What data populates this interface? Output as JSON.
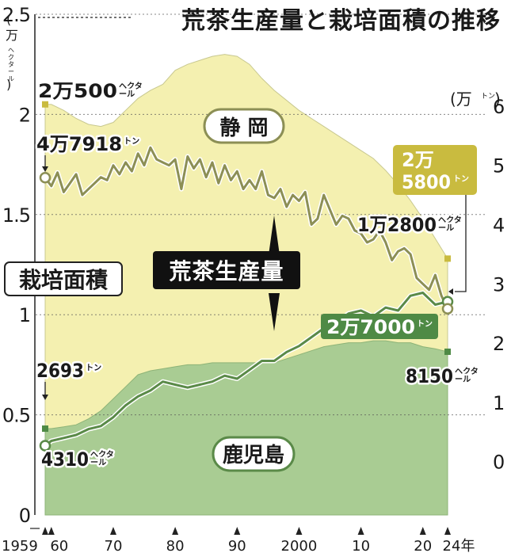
{
  "title": "荒茶生産量と栽培面積の推移",
  "colors": {
    "shizuoka_area_fill": "#f4f0b0",
    "shizuoka_area_edge": "#c8c890",
    "kagoshima_area_fill": "#a9cc93",
    "kagoshima_area_edge": "#8db377",
    "shizuoka_line": "#8c8f55",
    "kagoshima_line": "#5a8a48",
    "gold": "#c9bb3f",
    "marker_green": "#4e8a45",
    "text": "#1a1a1a"
  },
  "chart_data": {
    "type": "area+line",
    "title": "荒茶生産量と栽培面積の推移",
    "left_axis": {
      "label": "(万ヘクタール)",
      "unit_main": "万",
      "unit_sub": "ヘクタール",
      "ylim": [
        0,
        2.5
      ],
      "ticks": [
        "0",
        "0.5",
        "1",
        "1.5",
        "2",
        "2.5"
      ],
      "tick_values": [
        0,
        0.5,
        1,
        1.5,
        2,
        2.5
      ]
    },
    "right_axis": {
      "label": "(万トン)",
      "unit_main": "万",
      "unit_sub": "トン",
      "ylim": [
        -0.9,
        7.55
      ],
      "ticks": [
        "0",
        "1",
        "2",
        "3",
        "4",
        "5",
        "6"
      ],
      "tick_values": [
        0,
        1,
        2,
        3,
        4,
        5,
        6
      ]
    },
    "x_axis": {
      "range": [
        1959,
        2024
      ],
      "ticks": [
        {
          "year": 1959,
          "label": "1959"
        },
        {
          "year": 1960,
          "label": "60"
        },
        {
          "year": 1970,
          "label": "70"
        },
        {
          "year": 1980,
          "label": "80"
        },
        {
          "year": 1990,
          "label": "90"
        },
        {
          "year": 2000,
          "label": "2000"
        },
        {
          "year": 2010,
          "label": "10"
        },
        {
          "year": 2020,
          "label": "20"
        },
        {
          "year": 2024,
          "label": "24年"
        }
      ]
    },
    "series": [
      {
        "name": "静岡",
        "kind": "cultivation_area",
        "unit": "万ヘクタール",
        "points": [
          [
            1959,
            2.05
          ],
          [
            1960,
            2.05
          ],
          [
            1962,
            2.02
          ],
          [
            1964,
            1.98
          ],
          [
            1966,
            1.95
          ],
          [
            1968,
            1.94
          ],
          [
            1970,
            1.96
          ],
          [
            1972,
            2.02
          ],
          [
            1974,
            2.08
          ],
          [
            1976,
            2.12
          ],
          [
            1978,
            2.15
          ],
          [
            1980,
            2.22
          ],
          [
            1982,
            2.25
          ],
          [
            1984,
            2.27
          ],
          [
            1986,
            2.29
          ],
          [
            1988,
            2.3
          ],
          [
            1990,
            2.29
          ],
          [
            1992,
            2.25
          ],
          [
            1994,
            2.18
          ],
          [
            1996,
            2.12
          ],
          [
            1998,
            2.07
          ],
          [
            2000,
            2.02
          ],
          [
            2002,
            1.98
          ],
          [
            2004,
            1.94
          ],
          [
            2006,
            1.9
          ],
          [
            2008,
            1.86
          ],
          [
            2010,
            1.82
          ],
          [
            2012,
            1.78
          ],
          [
            2014,
            1.72
          ],
          [
            2016,
            1.65
          ],
          [
            2018,
            1.57
          ],
          [
            2020,
            1.48
          ],
          [
            2022,
            1.38
          ],
          [
            2024,
            1.28
          ]
        ]
      },
      {
        "name": "鹿児島",
        "kind": "cultivation_area",
        "unit": "万ヘクタール",
        "points": [
          [
            1959,
            0.431
          ],
          [
            1960,
            0.431
          ],
          [
            1962,
            0.44
          ],
          [
            1964,
            0.45
          ],
          [
            1966,
            0.48
          ],
          [
            1968,
            0.52
          ],
          [
            1970,
            0.58
          ],
          [
            1972,
            0.64
          ],
          [
            1974,
            0.7
          ],
          [
            1976,
            0.72
          ],
          [
            1978,
            0.73
          ],
          [
            1980,
            0.74
          ],
          [
            1982,
            0.75
          ],
          [
            1984,
            0.75
          ],
          [
            1986,
            0.76
          ],
          [
            1988,
            0.76
          ],
          [
            1990,
            0.76
          ],
          [
            1992,
            0.76
          ],
          [
            1994,
            0.76
          ],
          [
            1996,
            0.76
          ],
          [
            1998,
            0.78
          ],
          [
            2000,
            0.8
          ],
          [
            2002,
            0.82
          ],
          [
            2004,
            0.84
          ],
          [
            2006,
            0.85
          ],
          [
            2008,
            0.86
          ],
          [
            2010,
            0.86
          ],
          [
            2012,
            0.87
          ],
          [
            2014,
            0.87
          ],
          [
            2016,
            0.86
          ],
          [
            2018,
            0.86
          ],
          [
            2020,
            0.84
          ],
          [
            2022,
            0.83
          ],
          [
            2024,
            0.815
          ]
        ]
      },
      {
        "name": "静岡",
        "kind": "crude_tea_production",
        "unit": "万トン",
        "points": [
          [
            1959,
            4.7918
          ],
          [
            1960,
            4.65
          ],
          [
            1961,
            4.88
          ],
          [
            1962,
            4.55
          ],
          [
            1963,
            4.7
          ],
          [
            1964,
            4.85
          ],
          [
            1965,
            4.5
          ],
          [
            1966,
            4.6
          ],
          [
            1967,
            4.7
          ],
          [
            1968,
            4.8
          ],
          [
            1969,
            4.75
          ],
          [
            1970,
            5.0
          ],
          [
            1971,
            4.85
          ],
          [
            1972,
            5.05
          ],
          [
            1973,
            4.9
          ],
          [
            1974,
            5.2
          ],
          [
            1975,
            5.0
          ],
          [
            1976,
            5.3
          ],
          [
            1977,
            5.1
          ],
          [
            1978,
            5.05
          ],
          [
            1979,
            5.0
          ],
          [
            1980,
            5.1
          ],
          [
            1981,
            4.6
          ],
          [
            1982,
            5.15
          ],
          [
            1983,
            4.95
          ],
          [
            1984,
            5.1
          ],
          [
            1985,
            4.8
          ],
          [
            1986,
            5.05
          ],
          [
            1987,
            4.7
          ],
          [
            1988,
            5.0
          ],
          [
            1989,
            4.75
          ],
          [
            1990,
            4.9
          ],
          [
            1991,
            4.6
          ],
          [
            1992,
            4.75
          ],
          [
            1993,
            4.6
          ],
          [
            1994,
            4.9
          ],
          [
            1995,
            4.5
          ],
          [
            1996,
            4.45
          ],
          [
            1997,
            4.6
          ],
          [
            1998,
            4.3
          ],
          [
            1999,
            4.5
          ],
          [
            2000,
            4.4
          ],
          [
            2001,
            4.55
          ],
          [
            2002,
            4.0
          ],
          [
            2003,
            4.1
          ],
          [
            2004,
            4.5
          ],
          [
            2005,
            4.25
          ],
          [
            2006,
            4.0
          ],
          [
            2007,
            4.15
          ],
          [
            2008,
            4.1
          ],
          [
            2009,
            3.9
          ],
          [
            2010,
            3.85
          ],
          [
            2011,
            3.7
          ],
          [
            2012,
            3.75
          ],
          [
            2013,
            3.9
          ],
          [
            2014,
            3.7
          ],
          [
            2015,
            3.4
          ],
          [
            2016,
            3.55
          ],
          [
            2017,
            3.6
          ],
          [
            2018,
            3.5
          ],
          [
            2019,
            3.1
          ],
          [
            2020,
            3.0
          ],
          [
            2021,
            2.9
          ],
          [
            2022,
            3.15
          ],
          [
            2023,
            2.8
          ],
          [
            2024,
            2.58
          ]
        ]
      },
      {
        "name": "鹿児島",
        "kind": "crude_tea_production",
        "unit": "万トン",
        "points": [
          [
            1959,
            0.2693
          ],
          [
            1960,
            0.35
          ],
          [
            1962,
            0.4
          ],
          [
            1964,
            0.45
          ],
          [
            1966,
            0.55
          ],
          [
            1968,
            0.6
          ],
          [
            1970,
            0.75
          ],
          [
            1972,
            0.95
          ],
          [
            1974,
            1.1
          ],
          [
            1976,
            1.2
          ],
          [
            1978,
            1.35
          ],
          [
            1980,
            1.3
          ],
          [
            1982,
            1.25
          ],
          [
            1984,
            1.3
          ],
          [
            1986,
            1.35
          ],
          [
            1988,
            1.45
          ],
          [
            1990,
            1.4
          ],
          [
            1992,
            1.55
          ],
          [
            1994,
            1.7
          ],
          [
            1996,
            1.7
          ],
          [
            1998,
            1.85
          ],
          [
            2000,
            1.95
          ],
          [
            2002,
            2.1
          ],
          [
            2004,
            2.25
          ],
          [
            2006,
            2.35
          ],
          [
            2008,
            2.5
          ],
          [
            2010,
            2.55
          ],
          [
            2012,
            2.45
          ],
          [
            2014,
            2.6
          ],
          [
            2016,
            2.55
          ],
          [
            2018,
            2.8
          ],
          [
            2020,
            2.85
          ],
          [
            2022,
            2.65
          ],
          [
            2024,
            2.7
          ]
        ]
      }
    ],
    "annotations": [
      {
        "id": "shizuoka_area_1959",
        "main": "2万500",
        "sub": "ヘクタール"
      },
      {
        "id": "shizuoka_area_2024",
        "main": "1万2800",
        "sub": "ヘクタール"
      },
      {
        "id": "kagoshima_area_1959",
        "main": "4310",
        "sub": "ヘクタール"
      },
      {
        "id": "kagoshima_area_2024",
        "main": "8150",
        "sub": "ヘクタール"
      },
      {
        "id": "shizuoka_prod_1959",
        "main": "4万7918",
        "sub": "トン"
      },
      {
        "id": "kagoshima_prod_1959",
        "main": "2693",
        "sub": "トン"
      },
      {
        "id": "kagoshima_prod_2024",
        "main": "2万7000",
        "sub": "トン"
      },
      {
        "id": "shizuoka_prod_2024",
        "line1": "2万",
        "line2": "5800",
        "sub": "トン"
      }
    ],
    "labels": {
      "shizuoka": "静 岡",
      "kagoshima": "鹿児島",
      "area": "栽培面積",
      "production": "荒茶生産量"
    },
    "grid": "dotted horizontal"
  }
}
